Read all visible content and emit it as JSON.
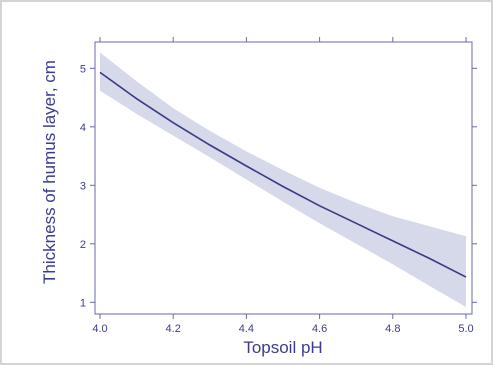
{
  "chart_data": {
    "type": "line",
    "title": "",
    "xlabel": "Topsoil pH",
    "ylabel": "Thickness of humus layer, cm",
    "xlim": [
      4.0,
      5.0
    ],
    "ylim": [
      0.8,
      5.45
    ],
    "x_ticks": [
      "4.0",
      "4.2",
      "4.4",
      "4.6",
      "4.8",
      "5.0"
    ],
    "y_ticks": [
      "1",
      "2",
      "3",
      "4",
      "5"
    ],
    "grid": false,
    "legend": "none",
    "colors": {
      "line": "#3a3a85",
      "band": "#d6d9ea",
      "axis": "#6a6aa8",
      "text": "#3b3b8f"
    },
    "series": [
      {
        "x": [
          4.0,
          4.1,
          4.2,
          4.3,
          4.4,
          4.5,
          4.6,
          4.7,
          4.8,
          4.9,
          5.0
        ],
        "y": [
          4.93,
          4.48,
          4.07,
          3.69,
          3.33,
          2.98,
          2.65,
          2.35,
          2.05,
          1.75,
          1.43
        ],
        "lower": [
          4.62,
          4.22,
          3.85,
          3.48,
          3.1,
          2.72,
          2.35,
          2.0,
          1.65,
          1.28,
          0.92
        ],
        "upper": [
          5.27,
          4.78,
          4.32,
          3.93,
          3.58,
          3.26,
          2.96,
          2.7,
          2.47,
          2.3,
          2.13
        ]
      }
    ]
  }
}
